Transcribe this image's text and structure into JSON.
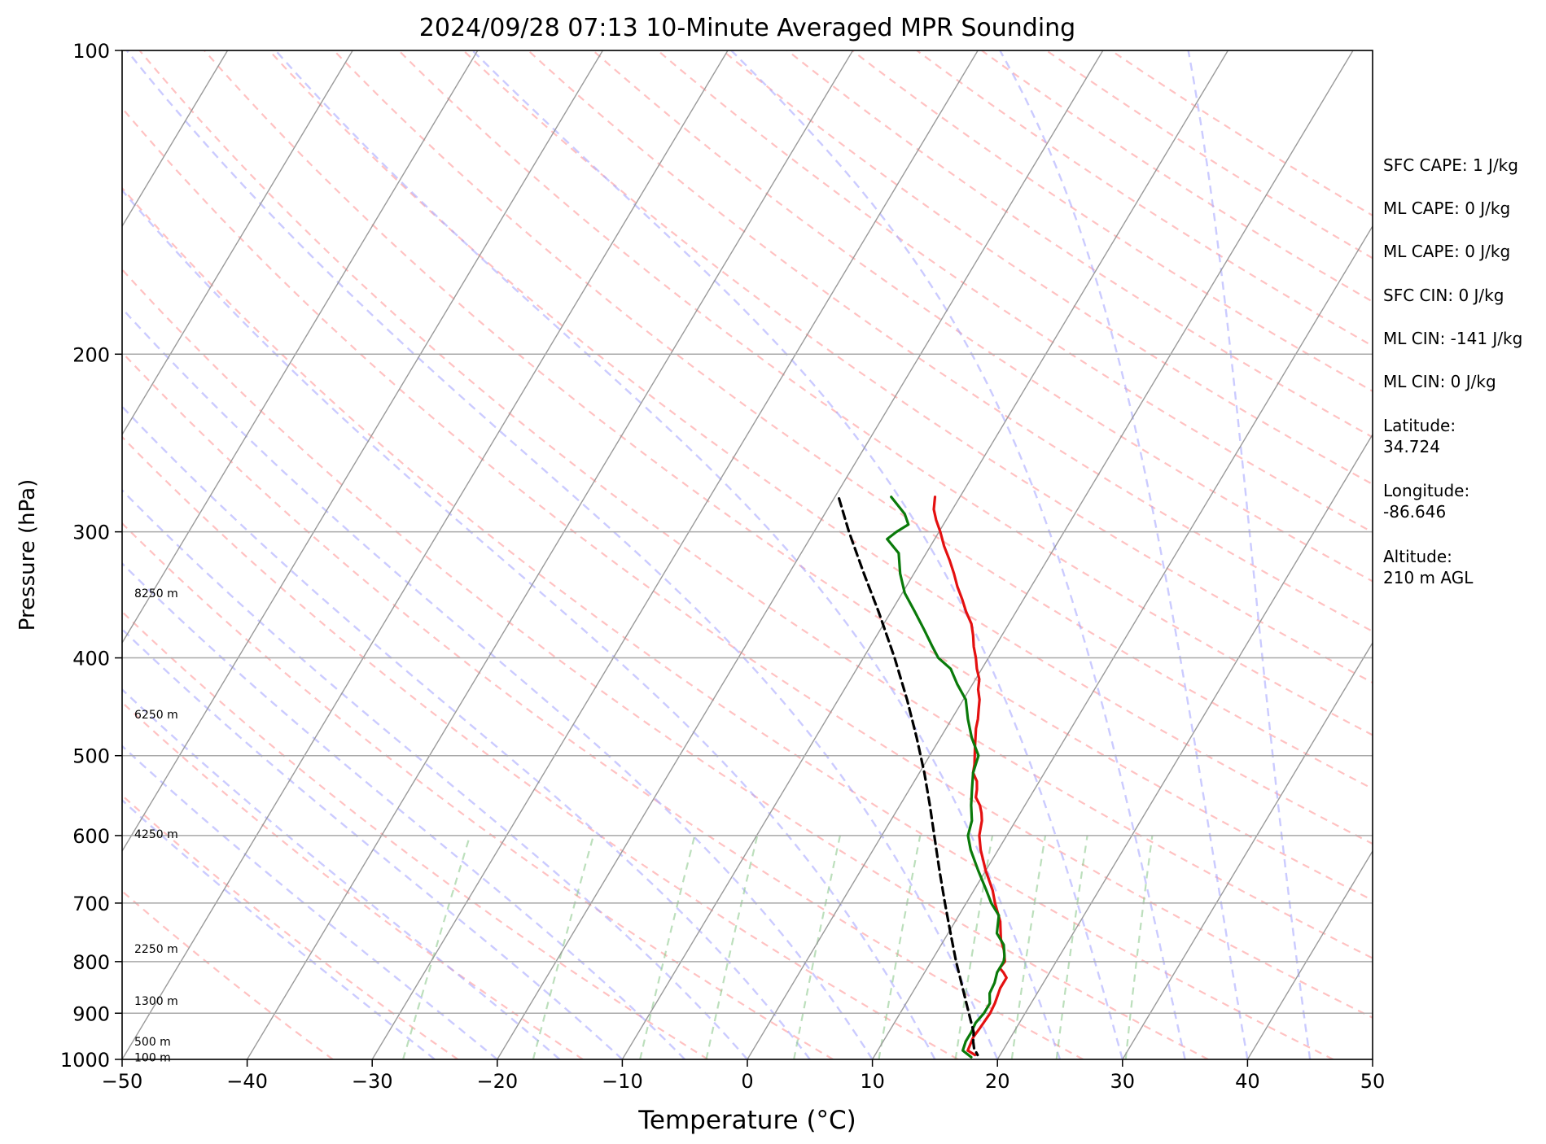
{
  "chart_data": {
    "type": "skew-t",
    "title": "2024/09/28 07:13 10-Minute Averaged MPR Sounding",
    "xlabel": "Temperature (°C)",
    "ylabel": "Pressure (hPa)",
    "xlim": [
      -50,
      50
    ],
    "ylim": [
      1000,
      100
    ],
    "y_scale": "log",
    "x_ticks": [
      -50,
      -40,
      -30,
      -20,
      -10,
      0,
      10,
      20,
      30,
      40,
      50
    ],
    "x_tick_labels": [
      "−50",
      "−40",
      "−30",
      "−20",
      "−10",
      "0",
      "10",
      "20",
      "30",
      "40",
      "50"
    ],
    "y_ticks": [
      100,
      200,
      300,
      400,
      500,
      600,
      700,
      800,
      900,
      1000
    ],
    "y_tick_labels": [
      "100",
      "200",
      "300",
      "400",
      "500",
      "600",
      "700",
      "800",
      "900",
      "1000"
    ],
    "grid": true,
    "height_labels": [
      {
        "p": 345,
        "text": "8250 m"
      },
      {
        "p": 455,
        "text": "6250 m"
      },
      {
        "p": 598,
        "text": "4250 m"
      },
      {
        "p": 777,
        "text": "2250 m"
      },
      {
        "p": 875,
        "text": "1300 m"
      },
      {
        "p": 960,
        "text": "500 m"
      },
      {
        "p": 995,
        "text": "100 m"
      }
    ],
    "series": [
      {
        "color": "#e41010",
        "points": [
          [
            277,
            -12.0
          ],
          [
            285,
            -11.5
          ],
          [
            292,
            -10.8
          ],
          [
            300,
            -9.9
          ],
          [
            310,
            -8.9
          ],
          [
            320,
            -7.8
          ],
          [
            330,
            -6.8
          ],
          [
            340,
            -5.9
          ],
          [
            350,
            -4.9
          ],
          [
            360,
            -4.0
          ],
          [
            370,
            -3.0
          ],
          [
            380,
            -2.3
          ],
          [
            390,
            -1.7
          ],
          [
            400,
            -1.0
          ],
          [
            410,
            -0.4
          ],
          [
            420,
            0.3
          ],
          [
            430,
            0.7
          ],
          [
            440,
            1.3
          ],
          [
            450,
            1.7
          ],
          [
            460,
            2.1
          ],
          [
            470,
            2.4
          ],
          [
            480,
            2.8
          ],
          [
            490,
            3.2
          ],
          [
            500,
            3.6
          ],
          [
            510,
            4.0
          ],
          [
            520,
            4.3
          ],
          [
            530,
            5.0
          ],
          [
            540,
            5.4
          ],
          [
            550,
            5.7
          ],
          [
            560,
            6.4
          ],
          [
            570,
            6.9
          ],
          [
            580,
            7.3
          ],
          [
            600,
            7.8
          ],
          [
            620,
            8.6
          ],
          [
            650,
            10.0
          ],
          [
            680,
            11.5
          ],
          [
            700,
            12.3
          ],
          [
            730,
            13.6
          ],
          [
            760,
            14.5
          ],
          [
            780,
            15.3
          ],
          [
            800,
            15.9
          ],
          [
            812,
            15.8
          ],
          [
            820,
            16.3
          ],
          [
            830,
            16.8
          ],
          [
            850,
            16.8
          ],
          [
            880,
            17.1
          ],
          [
            900,
            17.2
          ],
          [
            930,
            17.1
          ],
          [
            950,
            17.0
          ],
          [
            980,
            17.2
          ],
          [
            990,
            18.0
          ]
        ]
      },
      {
        "color": "#0a7a0a",
        "points": [
          [
            277,
            -15.5
          ],
          [
            288,
            -13.6
          ],
          [
            295,
            -12.8
          ],
          [
            300,
            -13.4
          ],
          [
            305,
            -13.8
          ],
          [
            315,
            -12.2
          ],
          [
            330,
            -11.1
          ],
          [
            345,
            -9.8
          ],
          [
            360,
            -8.1
          ],
          [
            375,
            -6.5
          ],
          [
            390,
            -5.0
          ],
          [
            400,
            -4.0
          ],
          [
            410,
            -2.5
          ],
          [
            425,
            -1.2
          ],
          [
            440,
            0.2
          ],
          [
            460,
            1.3
          ],
          [
            480,
            2.5
          ],
          [
            500,
            3.9
          ],
          [
            520,
            4.3
          ],
          [
            540,
            5.0
          ],
          [
            560,
            5.7
          ],
          [
            580,
            6.5
          ],
          [
            600,
            6.9
          ],
          [
            620,
            7.8
          ],
          [
            650,
            9.4
          ],
          [
            680,
            11.0
          ],
          [
            700,
            12.0
          ],
          [
            720,
            13.2
          ],
          [
            750,
            13.9
          ],
          [
            770,
            15.0
          ],
          [
            790,
            15.6
          ],
          [
            800,
            15.8
          ],
          [
            820,
            15.8
          ],
          [
            840,
            16.1
          ],
          [
            860,
            16.2
          ],
          [
            880,
            16.7
          ],
          [
            900,
            16.7
          ],
          [
            920,
            16.5
          ],
          [
            940,
            16.6
          ],
          [
            960,
            16.6
          ],
          [
            980,
            16.8
          ],
          [
            995,
            17.8
          ]
        ]
      },
      {
        "color": "#000000",
        "dashed": true,
        "points": [
          [
            278,
            -19.6
          ],
          [
            300,
            -17.2
          ],
          [
            330,
            -14.0
          ],
          [
            360,
            -11.0
          ],
          [
            400,
            -7.5
          ],
          [
            440,
            -4.5
          ],
          [
            480,
            -1.9
          ],
          [
            520,
            0.4
          ],
          [
            560,
            2.4
          ],
          [
            600,
            4.2
          ],
          [
            650,
            6.3
          ],
          [
            700,
            8.3
          ],
          [
            750,
            10.2
          ],
          [
            800,
            12.0
          ],
          [
            850,
            13.8
          ],
          [
            900,
            15.5
          ],
          [
            940,
            16.8
          ],
          [
            960,
            17.2
          ],
          [
            975,
            17.6
          ],
          [
            990,
            18.2
          ]
        ]
      }
    ]
  },
  "info_panel": {
    "lines": [
      "SFC CAPE: 1 J/kg",
      "ML CAPE: 0 J/kg",
      "ML CAPE: 0 J/kg",
      "SFC CIN: 0 J/kg",
      "ML CIN: -141 J/kg",
      "ML CIN: 0 J/kg",
      "Latitude:",
      "34.724",
      "Longitude:",
      "-86.646",
      "Altitude:",
      "210 m AGL"
    ]
  }
}
